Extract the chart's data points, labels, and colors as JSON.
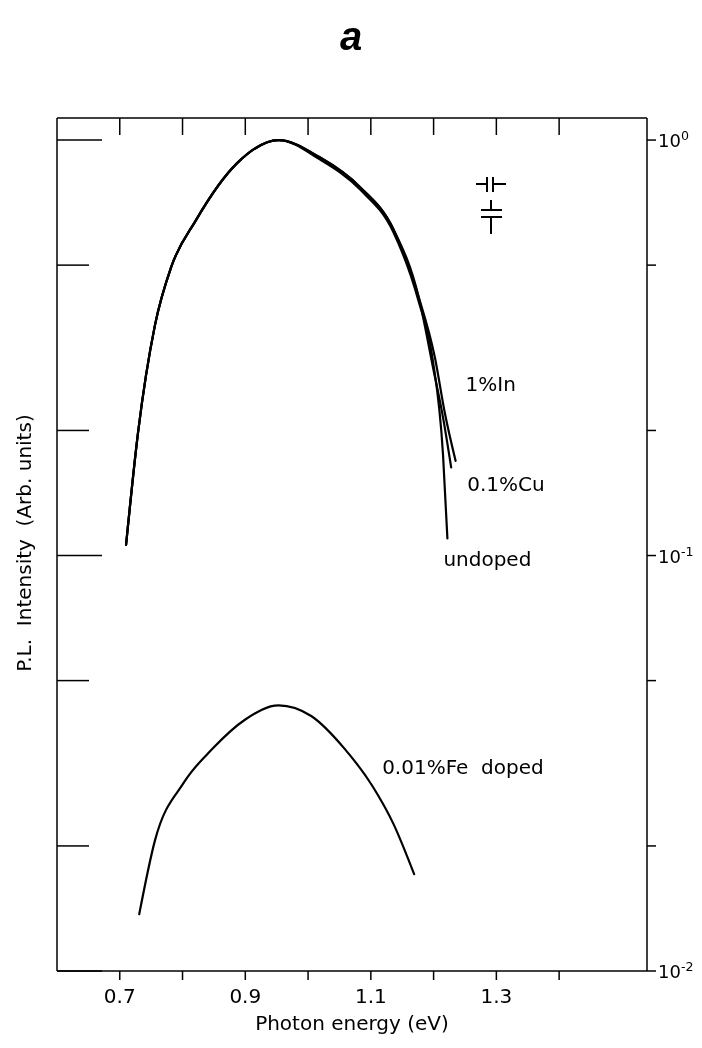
{
  "chart_data": {
    "type": "line",
    "title": "a",
    "xlabel": "Photon energy (eV)",
    "ylabel": "P.L.  Intensity  (Arb. units)",
    "log": "y",
    "marker": "none",
    "line_style": "solid",
    "xlim": [
      0.6,
      1.54
    ],
    "xticks": [
      0.7,
      {
        "value": 0.8,
        "label": null
      },
      0.9,
      {
        "value": 1.0,
        "label": null
      },
      1.1,
      {
        "value": 1.2,
        "label": null
      },
      1.3,
      {
        "value": 1.4,
        "label": null
      }
    ],
    "ylim": [
      0.01,
      1.13
    ],
    "yticks": [
      {
        "value": 1,
        "label": "10$^{0}$"
      },
      {
        "value": 0.5,
        "label": null
      },
      {
        "value": 0.2,
        "label": null
      },
      {
        "value": 0.1,
        "label": "10$^{-1}$"
      },
      {
        "value": 0.05,
        "label": null
      },
      {
        "value": 0.02,
        "label": null
      },
      {
        "value": 0.01,
        "label": "10$^{-2}$"
      }
    ],
    "series": [
      {
        "name": "undoped",
        "color": "#000000",
        "x": [
          0.71,
          0.729,
          0.756,
          0.782,
          0.821,
          0.887,
          0.953,
          1.018,
          1.083,
          1.136,
          1.176,
          1.198,
          1.215,
          1.222
        ],
        "values": [
          0.106,
          0.197,
          0.358,
          0.495,
          0.64,
          0.88,
          1.0,
          0.9,
          0.76,
          0.6,
          0.41,
          0.3,
          0.175,
          0.11
        ]
      },
      {
        "name": "1%In",
        "color": "#000000",
        "x": [
          0.71,
          0.729,
          0.756,
          0.782,
          0.821,
          0.887,
          0.953,
          1.018,
          1.083,
          1.136,
          1.176,
          1.202,
          1.218,
          1.235
        ],
        "values": [
          0.106,
          0.197,
          0.358,
          0.495,
          0.64,
          0.88,
          1.0,
          0.91,
          0.77,
          0.61,
          0.42,
          0.3,
          0.22,
          0.169
        ]
      },
      {
        "name": "0.1%Cu",
        "color": "#000000",
        "x": [
          0.71,
          0.729,
          0.756,
          0.782,
          0.821,
          0.887,
          0.953,
          1.018,
          1.083,
          1.136,
          1.176,
          1.199,
          1.215,
          1.228
        ],
        "values": [
          0.106,
          0.197,
          0.358,
          0.495,
          0.64,
          0.88,
          1.0,
          0.91,
          0.77,
          0.61,
          0.42,
          0.284,
          0.215,
          0.163
        ]
      },
      {
        "name": "0.01%Fe  doped",
        "color": "#000000",
        "x": [
          0.731,
          0.756,
          0.802,
          0.848,
          0.9,
          0.953,
          1.005,
          1.058,
          1.103,
          1.136,
          1.169
        ],
        "values": [
          0.0137,
          0.0206,
          0.0284,
          0.0343,
          0.0403,
          0.0436,
          0.0411,
          0.0343,
          0.0278,
          0.0226,
          0.0171
        ]
      }
    ]
  }
}
